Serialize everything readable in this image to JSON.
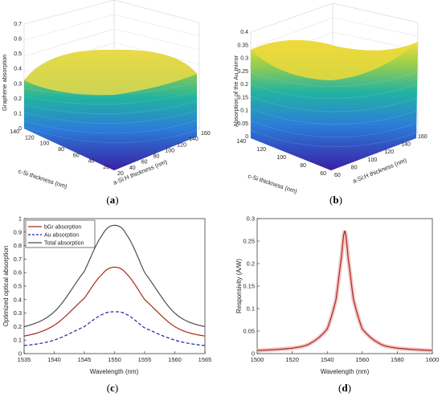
{
  "colors": {
    "bgr": "#a62a1b",
    "au": "#1f1fa8",
    "total": "#4d4d4d",
    "resp": "#a62a1b",
    "resp_glow": "#f4c6c6",
    "surface_low": "#3b1fa6",
    "surface_mid": "#22a89a",
    "surface_high": "#fde51f"
  },
  "panels": {
    "a": {
      "caption_open": "(",
      "caption_letter": "a",
      "caption_close": ")",
      "zlabel": "Graphene absorption",
      "xlabel": "c-Si thickness (nm)",
      "ylabel": "a-Si:H thickness (nm)",
      "zticks": [
        "0",
        "0.1",
        "0.2",
        "0.3",
        "0.4",
        "0.5",
        "0.6",
        "0.7"
      ],
      "xticks": [
        "140",
        "120",
        "100",
        "80",
        "60",
        "40",
        "20"
      ],
      "yticks": [
        "20",
        "40",
        "60",
        "80",
        "100",
        "120",
        "140",
        "160"
      ]
    },
    "b": {
      "caption_open": "(",
      "caption_letter": "b",
      "caption_close": ")",
      "zlabel": "Absorption of the Au mirror",
      "xlabel": "c-Si thickness (nm)",
      "ylabel": "a-Si:H thickness (nm)",
      "zticks": [
        "0",
        "0.05",
        "0.1",
        "0.15",
        "0.2",
        "0.25",
        "0.3",
        "0.35",
        "0.4"
      ],
      "xticks": [
        "140",
        "120",
        "100",
        "80",
        "60"
      ],
      "yticks": [
        "60",
        "80",
        "100",
        "120",
        "140",
        "160"
      ]
    },
    "c": {
      "caption_open": "(",
      "caption_letter": "c",
      "caption_close": ")"
    },
    "d": {
      "caption_open": "(",
      "caption_letter": "d",
      "caption_close": ")"
    }
  },
  "chart_data": [
    {
      "panel": "a",
      "type": "surface",
      "zlabel": "Graphene absorption",
      "xlabel": "c-Si thickness (nm)",
      "ylabel": "a-Si:H thickness (nm)",
      "zlim": [
        0,
        0.7
      ],
      "x_range": [
        20,
        140
      ],
      "y_range": [
        20,
        160
      ],
      "z_max": 0.64,
      "colormap": "parula"
    },
    {
      "panel": "b",
      "type": "surface",
      "zlabel": "Absorption of the Au mirror",
      "xlabel": "c-Si thickness (nm)",
      "ylabel": "a-Si:H thickness (nm)",
      "zlim": [
        0,
        0.4
      ],
      "x_range": [
        60,
        140
      ],
      "y_range": [
        60,
        160
      ],
      "z_min_ridge": 0.32,
      "z_max": 0.37,
      "colormap": "parula"
    },
    {
      "panel": "c",
      "type": "line",
      "xlabel": "Wavelength (nm)",
      "ylabel": "Optimized optical absorption",
      "xlim": [
        1535,
        1565
      ],
      "ylim": [
        0,
        1
      ],
      "xticks": [
        1535,
        1540,
        1545,
        1550,
        1555,
        1560,
        1565
      ],
      "yticks": [
        0,
        0.1,
        0.2,
        0.3,
        0.4,
        0.5,
        0.6,
        0.7,
        0.8,
        0.9,
        1
      ],
      "legend_position": "top-left",
      "series": [
        {
          "name": "bGr absorption",
          "color_key": "bgr",
          "dash": "solid",
          "x": [
            1535,
            1540,
            1545,
            1548,
            1550,
            1552,
            1555,
            1560,
            1565
          ],
          "y": [
            0.13,
            0.21,
            0.41,
            0.59,
            0.64,
            0.59,
            0.4,
            0.2,
            0.13
          ]
        },
        {
          "name": "Au absorption",
          "color_key": "au",
          "dash": "dashed",
          "x": [
            1535,
            1540,
            1545,
            1548,
            1550,
            1552,
            1555,
            1560,
            1565
          ],
          "y": [
            0.06,
            0.1,
            0.2,
            0.29,
            0.31,
            0.29,
            0.19,
            0.1,
            0.06
          ]
        },
        {
          "name": "Total absorption",
          "color_key": "total",
          "dash": "solid",
          "x": [
            1535,
            1540,
            1545,
            1548,
            1550,
            1552,
            1555,
            1560,
            1565
          ],
          "y": [
            0.2,
            0.31,
            0.61,
            0.88,
            0.95,
            0.88,
            0.6,
            0.3,
            0.2
          ]
        }
      ]
    },
    {
      "panel": "d",
      "type": "line",
      "xlabel": "Wavelength (nm)",
      "ylabel": "Responsivity (A/W)",
      "xlim": [
        1500,
        1600
      ],
      "ylim": [
        0,
        0.3
      ],
      "xticks": [
        1500,
        1520,
        1540,
        1560,
        1580,
        1600
      ],
      "yticks": [
        0,
        0.05,
        0.1,
        0.15,
        0.2,
        0.25,
        0.3
      ],
      "series": [
        {
          "color_key": "resp",
          "dash": "solid",
          "x": [
            1500,
            1520,
            1530,
            1540,
            1545,
            1548,
            1550,
            1552,
            1555,
            1560,
            1570,
            1580,
            1600
          ],
          "y": [
            0.007,
            0.012,
            0.022,
            0.055,
            0.12,
            0.21,
            0.273,
            0.21,
            0.12,
            0.055,
            0.022,
            0.012,
            0.007
          ]
        }
      ]
    }
  ]
}
